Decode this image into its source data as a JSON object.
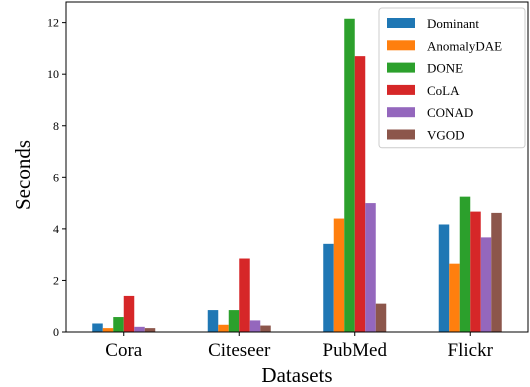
{
  "chart_data": {
    "type": "bar",
    "xlabel": "Datasets",
    "ylabel": "Seconds",
    "categories": [
      "Cora",
      "Citeseer",
      "PubMed",
      "Flickr"
    ],
    "ylim": [
      0,
      12.8
    ],
    "yticks": [
      "0",
      "2",
      "4",
      "6",
      "8",
      "10",
      "12"
    ],
    "legend_position": "top-right",
    "grid": false,
    "series": [
      {
        "name": "Dominant",
        "color": "#1f77b4",
        "values": [
          0.33,
          0.85,
          3.42,
          4.17
        ]
      },
      {
        "name": "AnomalyDAE",
        "color": "#ff7f0e",
        "values": [
          0.15,
          0.28,
          4.4,
          2.65
        ]
      },
      {
        "name": "DONE",
        "color": "#2ca02c",
        "values": [
          0.58,
          0.85,
          12.15,
          5.25
        ]
      },
      {
        "name": "CoLA",
        "color": "#d62728",
        "values": [
          1.4,
          2.85,
          10.7,
          4.67
        ]
      },
      {
        "name": "CONAD",
        "color": "#9467bd",
        "values": [
          0.2,
          0.45,
          5.0,
          3.67
        ]
      },
      {
        "name": "VGOD",
        "color": "#8c564b",
        "values": [
          0.15,
          0.25,
          1.1,
          4.62
        ]
      }
    ]
  }
}
